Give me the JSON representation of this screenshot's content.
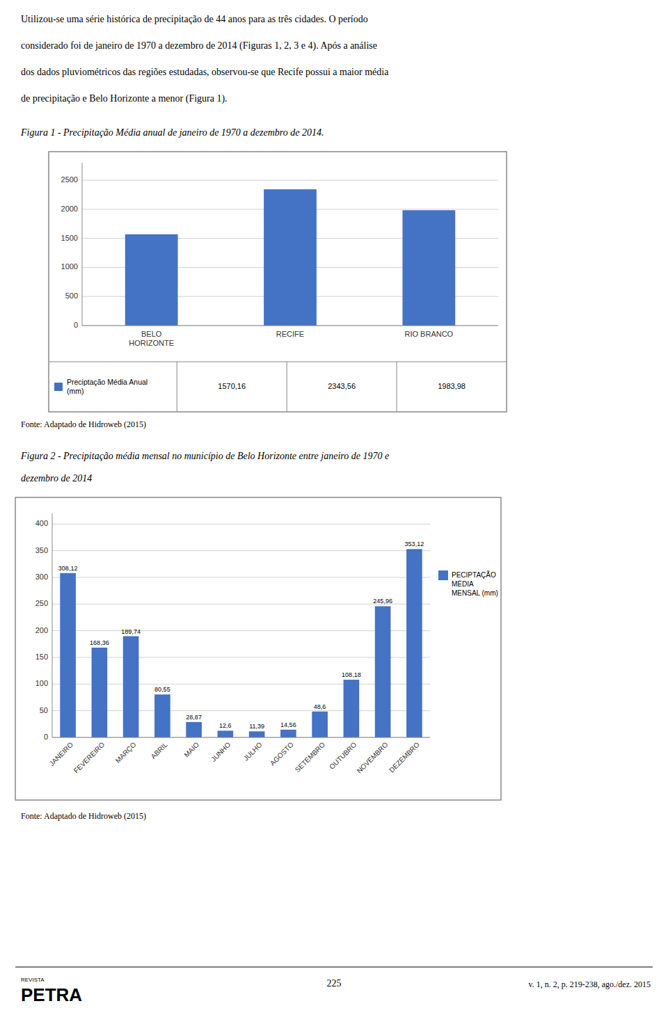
{
  "page": {
    "text_lines": [
      "Utilizou-se uma série histórica de precipitação de 44 anos para as três cidades. O período",
      "considerado foi de janeiro de 1970 a dezembro de 2014 (Figuras 1, 2, 3 e 4). Após a análise",
      "dos dados pluviométricos das regiões estudadas, observou-se que Recife possui a maior média",
      "de precipitação e Belo Horizonte a menor (Figura 1)."
    ],
    "footer_page": "225",
    "footer_right": "v. 1, n. 2, p. 219-238, ago./dez. 2015",
    "logo": [
      "REVISTA",
      "PETRA"
    ]
  },
  "chart_data": [
    {
      "type": "bar",
      "title": "Figura 1 - Precipitação Média anual de janeiro de 1970 a dezembro de 2014.",
      "categories": [
        "BELO\nHORIZONTE",
        "RECIFE",
        "RIO BRANCO"
      ],
      "series": [
        {
          "name": "Preciptação Média Anual\n(mm)",
          "color": "#4472C4",
          "values": [
            1570.16,
            2343.56,
            1983.98
          ],
          "value_labels": [
            "1570,16",
            "2343,56",
            "1983,98"
          ]
        }
      ],
      "ylim": [
        0,
        2800
      ],
      "yticks": [
        0,
        500,
        1000,
        1500,
        2000,
        2500
      ],
      "grid": true,
      "legend": "bottom",
      "annotations": [
        "Fonte: Adaptado de Hidroweb (2015)"
      ]
    },
    {
      "type": "bar",
      "title": "Figura 2 - Precipitação média mensal no município de Belo Horizonte entre janeiro de 1970 e\ndezembro de 2014",
      "categories": [
        "JANEIRO",
        "FEVEREIRO",
        "MARÇO",
        "ABRIL",
        "MAIO",
        "JUNHO",
        "JULHO",
        "AGOSTO",
        "SETEMBRO",
        "OUTUBRO",
        "NOVEMBRO",
        "DEZEMBRO"
      ],
      "series": [
        {
          "name": "PECIPTAÇÃO\nMÉDIA\nMENSAL (mm)",
          "color": "#4472C4",
          "values": [
            308.12,
            168.36,
            189.74,
            80.55,
            28.87,
            12.6,
            11.39,
            14.56,
            48.6,
            108.18,
            245.96,
            353.12
          ],
          "value_labels": [
            "308,12",
            "168,36",
            "189,74",
            "80,55",
            "28,87",
            "12,6",
            "11,39",
            "14,56",
            "48,6",
            "108,18",
            "245,96",
            "353,12"
          ]
        }
      ],
      "ylim": [
        0,
        420
      ],
      "yticks": [
        0,
        50,
        100,
        150,
        200,
        250,
        300,
        350,
        400
      ],
      "grid": true,
      "legend": "right",
      "data_labels": true,
      "annotations": [
        "Fonte: Adaptado de Hidroweb (2015)"
      ]
    }
  ]
}
